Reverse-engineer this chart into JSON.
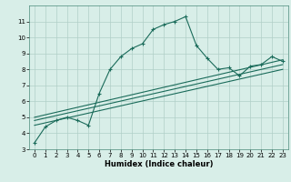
{
  "xlabel": "Humidex (Indice chaleur)",
  "ylabel": "",
  "bg_color": "#d8eee8",
  "grid_color": "#b0cfc8",
  "line_color": "#1a6b5a",
  "xlim": [
    -0.5,
    23.5
  ],
  "ylim": [
    3,
    12
  ],
  "xticks": [
    0,
    1,
    2,
    3,
    4,
    5,
    6,
    7,
    8,
    9,
    10,
    11,
    12,
    13,
    14,
    15,
    16,
    17,
    18,
    19,
    20,
    21,
    22,
    23
  ],
  "yticks": [
    3,
    4,
    5,
    6,
    7,
    8,
    9,
    10,
    11
  ],
  "main_series": {
    "x": [
      0,
      1,
      2,
      3,
      4,
      5,
      6,
      7,
      8,
      9,
      10,
      11,
      12,
      13,
      14,
      15,
      16,
      17,
      18,
      19,
      20,
      21,
      22,
      23
    ],
    "y": [
      3.4,
      4.4,
      4.8,
      5.0,
      4.8,
      4.5,
      6.5,
      8.0,
      8.8,
      9.3,
      9.6,
      10.5,
      10.8,
      11.0,
      11.3,
      9.5,
      8.7,
      8.0,
      8.1,
      7.6,
      8.2,
      8.3,
      8.8,
      8.5
    ]
  },
  "linear_series": [
    {
      "x": [
        0,
        23
      ],
      "y": [
        4.5,
        8.0
      ]
    },
    {
      "x": [
        0,
        23
      ],
      "y": [
        4.8,
        8.3
      ]
    },
    {
      "x": [
        0,
        23
      ],
      "y": [
        5.0,
        8.6
      ]
    }
  ],
  "xlabel_fontsize": 6,
  "tick_fontsize": 5,
  "linewidth": 0.8,
  "marker_size": 2.5
}
